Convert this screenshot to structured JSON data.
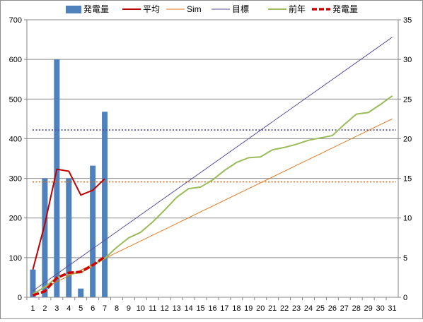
{
  "chart_data": {
    "type": "bar+line",
    "x": [
      1,
      2,
      3,
      4,
      5,
      6,
      7,
      8,
      9,
      10,
      11,
      12,
      13,
      14,
      15,
      16,
      17,
      18,
      19,
      20,
      21,
      22,
      23,
      24,
      25,
      26,
      27,
      28,
      29,
      30,
      31
    ],
    "y_left": {
      "min": 0,
      "max": 700,
      "ticks": [
        0,
        100,
        200,
        300,
        400,
        500,
        600,
        700
      ]
    },
    "y_right": {
      "min": 0,
      "max": 35,
      "ticks": [
        0,
        5,
        10,
        15,
        20,
        25,
        30,
        35
      ]
    },
    "legend_position": "top",
    "legend": [
      "発電量",
      "平均",
      "Sim",
      "目標",
      "前年",
      "発電量"
    ],
    "series": [
      {
        "name": "発電量",
        "kind": "bar",
        "axis": "left",
        "color": "#4f81bd",
        "x": [
          1,
          2,
          3,
          4,
          5,
          6,
          7
        ],
        "values": [
          70,
          300,
          600,
          300,
          22,
          332,
          468
        ]
      },
      {
        "name": "平均",
        "kind": "line",
        "axis": "left",
        "color": "#c00000",
        "x": [
          1,
          2,
          3,
          4,
          5,
          6,
          7
        ],
        "values": [
          70,
          185,
          323,
          318,
          258,
          270,
          299
        ]
      },
      {
        "name": "Sim",
        "kind": "line",
        "axis": "right",
        "color": "#e07820",
        "x": [
          1,
          31
        ],
        "values": [
          0.5,
          22.5
        ]
      },
      {
        "name": "目標",
        "kind": "line",
        "axis": "right",
        "color": "#5a4f9c",
        "x": [
          1,
          31
        ],
        "values": [
          0.8,
          32.8
        ]
      },
      {
        "name": "前年",
        "kind": "line",
        "axis": "right",
        "color": "#9bbb59",
        "x": [
          1,
          2,
          3,
          4,
          5,
          6,
          7,
          8,
          9,
          10,
          11,
          12,
          13,
          14,
          15,
          16,
          17,
          18,
          19,
          20,
          21,
          22,
          23,
          24,
          25,
          26,
          27,
          28,
          29,
          30,
          31
        ],
        "values": [
          0.4,
          1.3,
          2.5,
          2.9,
          3.1,
          4.0,
          4.9,
          6.3,
          7.5,
          8.2,
          9.5,
          11.0,
          12.6,
          13.7,
          13.9,
          14.8,
          16.0,
          17.0,
          17.6,
          17.7,
          18.6,
          18.9,
          19.3,
          19.8,
          20.1,
          20.4,
          21.8,
          23.1,
          23.3,
          24.3,
          25.4
        ]
      },
      {
        "name": "発電量",
        "kind": "line-dashed",
        "axis": "right",
        "color": "#d40000",
        "x": [
          1,
          2,
          3,
          4,
          5,
          6,
          7
        ],
        "values": [
          0.25,
          0.75,
          2.45,
          3.1,
          3.2,
          4.05,
          5.1
        ]
      }
    ],
    "reference_lines": [
      {
        "axis": "left",
        "value": 422,
        "color": "#4b4b9a",
        "style": "dotted"
      },
      {
        "axis": "left",
        "value": 291,
        "color": "#e06010",
        "style": "dotted"
      }
    ],
    "grid": {
      "horizontal": true,
      "vertical": false
    }
  }
}
